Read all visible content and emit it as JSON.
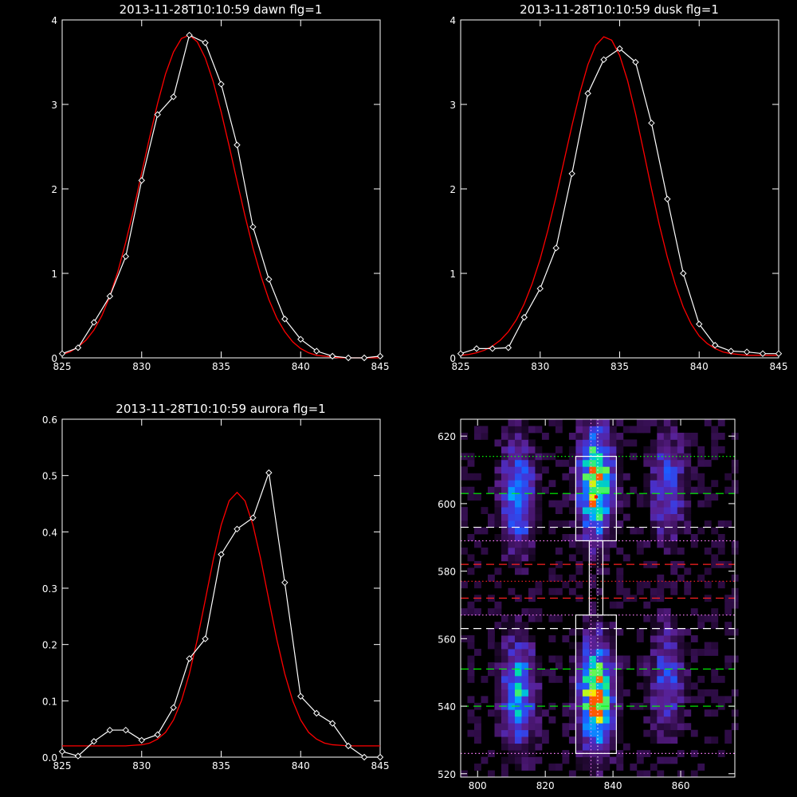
{
  "colors": {
    "background": "#000000",
    "axes": "#ffffff",
    "data_line": "#ffffff",
    "fit_line": "#ff0000",
    "green_dash": "#00ff00",
    "red_dash": "#ff2020",
    "magenta_dot": "#ff80ff",
    "white_dot": "#ffffff"
  },
  "chart_data": [
    {
      "type": "line",
      "title": "2013-11-28T10:10:59 dawn flg=1",
      "xlim": [
        825,
        845
      ],
      "ylim": [
        0,
        4
      ],
      "xticks": [
        825,
        830,
        835,
        840,
        845
      ],
      "yticks": [
        0,
        1,
        2,
        3,
        4
      ],
      "grid": false,
      "markers": "diamond",
      "series": [
        {
          "x": [
            825,
            826,
            827,
            828,
            829,
            830,
            831,
            832,
            833,
            834,
            835,
            836,
            837,
            838,
            839,
            840,
            841,
            842,
            843,
            844,
            845
          ],
          "values": [
            0.05,
            0.12,
            0.42,
            0.73,
            1.2,
            2.1,
            2.88,
            3.09,
            3.82,
            3.73,
            3.24,
            2.52,
            1.55,
            0.93,
            0.46,
            0.22,
            0.08,
            0.02,
            0.0,
            0.0,
            0.02
          ]
        },
        {
          "fit": true,
          "x": [
            825,
            825.5,
            826,
            826.5,
            827,
            827.5,
            828,
            828.5,
            829,
            829.5,
            830,
            830.5,
            831,
            831.5,
            832,
            832.5,
            833,
            833.5,
            834,
            834.5,
            835,
            835.5,
            836,
            836.5,
            837,
            837.5,
            838,
            838.5,
            839,
            839.5,
            840,
            840.5,
            841,
            841.5,
            842,
            842.5,
            843,
            843.5,
            844,
            844.5,
            845
          ],
          "values": [
            0.04,
            0.07,
            0.13,
            0.21,
            0.33,
            0.5,
            0.73,
            1.02,
            1.37,
            1.76,
            2.19,
            2.61,
            3.01,
            3.36,
            3.62,
            3.78,
            3.82,
            3.74,
            3.55,
            3.27,
            2.91,
            2.51,
            2.09,
            1.68,
            1.3,
            0.97,
            0.69,
            0.47,
            0.31,
            0.19,
            0.11,
            0.06,
            0.03,
            0.02,
            0.01,
            0.0,
            0.0,
            0.0,
            0.0,
            0.0,
            0.0
          ]
        }
      ]
    },
    {
      "type": "line",
      "title": "2013-11-28T10:10:59 dusk flg=1",
      "xlim": [
        825,
        845
      ],
      "ylim": [
        0,
        4
      ],
      "xticks": [
        825,
        830,
        835,
        840,
        845
      ],
      "yticks": [
        0,
        1,
        2,
        3,
        4
      ],
      "grid": false,
      "markers": "diamond",
      "series": [
        {
          "x": [
            825,
            826,
            827,
            828,
            829,
            830,
            831,
            832,
            833,
            834,
            835,
            836,
            837,
            838,
            839,
            840,
            841,
            842,
            843,
            844,
            845
          ],
          "values": [
            0.05,
            0.11,
            0.11,
            0.12,
            0.48,
            0.82,
            1.3,
            2.18,
            3.13,
            3.53,
            3.66,
            3.5,
            2.78,
            1.88,
            1.0,
            0.4,
            0.15,
            0.08,
            0.07,
            0.05,
            0.05
          ]
        },
        {
          "fit": true,
          "x": [
            825,
            825.5,
            826,
            826.5,
            827,
            827.5,
            828,
            828.5,
            829,
            829.5,
            830,
            830.5,
            831,
            831.5,
            832,
            832.5,
            833,
            833.5,
            834,
            834.5,
            835,
            835.5,
            836,
            836.5,
            837,
            837.5,
            838,
            838.5,
            839,
            839.5,
            840,
            840.5,
            841,
            841.5,
            842,
            842.5,
            843,
            843.5,
            844,
            844.5,
            845
          ],
          "values": [
            0.03,
            0.04,
            0.06,
            0.09,
            0.14,
            0.21,
            0.31,
            0.45,
            0.64,
            0.88,
            1.17,
            1.52,
            1.91,
            2.33,
            2.75,
            3.14,
            3.47,
            3.7,
            3.8,
            3.76,
            3.58,
            3.28,
            2.89,
            2.45,
            2.0,
            1.57,
            1.19,
            0.87,
            0.6,
            0.4,
            0.26,
            0.17,
            0.11,
            0.07,
            0.05,
            0.04,
            0.03,
            0.03,
            0.03,
            0.03,
            0.03
          ]
        }
      ]
    },
    {
      "type": "line",
      "title": "2013-11-28T10:10:59 aurora flg=1",
      "xlim": [
        825,
        845
      ],
      "ylim": [
        0,
        0.6
      ],
      "xticks": [
        825,
        830,
        835,
        840,
        845
      ],
      "yticks": [
        0.0,
        0.1,
        0.2,
        0.3,
        0.4,
        0.5,
        0.6
      ],
      "ytick_labels": [
        "0.0",
        "0.1",
        "0.2",
        "0.3",
        "0.4",
        "0.5",
        "0.6"
      ],
      "grid": false,
      "markers": "diamond",
      "series": [
        {
          "x": [
            825,
            826,
            827,
            828,
            829,
            830,
            831,
            832,
            833,
            834,
            835,
            836,
            837,
            838,
            839,
            840,
            841,
            842,
            843,
            844,
            845
          ],
          "values": [
            0.01,
            0.002,
            0.028,
            0.048,
            0.048,
            0.03,
            0.04,
            0.088,
            0.175,
            0.21,
            0.36,
            0.405,
            0.425,
            0.505,
            0.31,
            0.108,
            0.078,
            0.06,
            0.02,
            0.0,
            0.0
          ]
        },
        {
          "fit": true,
          "x": [
            825,
            825.5,
            826,
            826.5,
            827,
            827.5,
            828,
            828.5,
            829,
            829.5,
            830,
            830.5,
            831,
            831.5,
            832,
            832.5,
            833,
            833.5,
            834,
            834.5,
            835,
            835.5,
            836,
            836.5,
            837,
            837.5,
            838,
            838.5,
            839,
            839.5,
            840,
            840.5,
            841,
            841.5,
            842,
            842.5,
            843,
            843.5,
            844,
            844.5,
            845
          ],
          "values": [
            0.02,
            0.02,
            0.02,
            0.02,
            0.02,
            0.02,
            0.02,
            0.02,
            0.02,
            0.021,
            0.022,
            0.025,
            0.032,
            0.044,
            0.066,
            0.1,
            0.148,
            0.209,
            0.279,
            0.35,
            0.412,
            0.455,
            0.47,
            0.455,
            0.412,
            0.35,
            0.279,
            0.209,
            0.148,
            0.1,
            0.066,
            0.044,
            0.032,
            0.025,
            0.022,
            0.021,
            0.02,
            0.02,
            0.02,
            0.02,
            0.02
          ]
        }
      ]
    },
    {
      "type": "heatmap",
      "xlim": [
        795,
        876
      ],
      "ylim": [
        519,
        625
      ],
      "xticks": [
        800,
        820,
        840,
        860
      ],
      "yticks": [
        520,
        540,
        560,
        580,
        600,
        620
      ],
      "colormap": "rainbow-on-black",
      "emission_columns": [
        {
          "x": 812,
          "bands": [
            {
              "y": 602,
              "peak": 0.55
            },
            {
              "y": 544,
              "peak": 0.6
            }
          ]
        },
        {
          "x": 835,
          "bands": [
            {
              "y": 606,
              "peak": 1.0
            },
            {
              "y": 543,
              "peak": 1.0
            }
          ]
        },
        {
          "x": 856,
          "bands": [
            {
              "y": 605,
              "peak": 0.38
            },
            {
              "y": 548,
              "peak": 0.36
            }
          ]
        }
      ],
      "marker": {
        "x": 835,
        "y": 602
      },
      "boxes": [
        {
          "x0": 829,
          "x1": 841,
          "y0": 589,
          "y1": 614
        },
        {
          "x0": 829,
          "x1": 841,
          "y0": 526,
          "y1": 567
        },
        {
          "x0": 833,
          "x1": 837,
          "y0": 567,
          "y1": 589
        }
      ],
      "vertical_lines": [
        {
          "x": 833.5,
          "style": "dotted",
          "color": "#ff80ff"
        },
        {
          "x": 835.5,
          "style": "dotted",
          "color": "#ffffff"
        }
      ],
      "horizontal_lines": [
        {
          "y": 614,
          "style": "dotted",
          "color": "#00ff00"
        },
        {
          "y": 603,
          "style": "dashed",
          "color": "#00ff00"
        },
        {
          "y": 593,
          "style": "dashed",
          "color": "#ffffff"
        },
        {
          "y": 589,
          "style": "dotted",
          "color": "#ff80ff"
        },
        {
          "y": 582,
          "style": "dashed",
          "color": "#ff2020"
        },
        {
          "y": 577,
          "style": "dotted",
          "color": "#ff2020"
        },
        {
          "y": 572,
          "style": "dashed",
          "color": "#ff2020"
        },
        {
          "y": 567,
          "style": "dotted",
          "color": "#ff80ff"
        },
        {
          "y": 563,
          "style": "dashed",
          "color": "#ffffff"
        },
        {
          "y": 551,
          "style": "dashed",
          "color": "#00ff00"
        },
        {
          "y": 540,
          "style": "dashed",
          "color": "#00ff00"
        },
        {
          "y": 526,
          "style": "dotted",
          "color": "#ff80ff"
        }
      ]
    }
  ]
}
